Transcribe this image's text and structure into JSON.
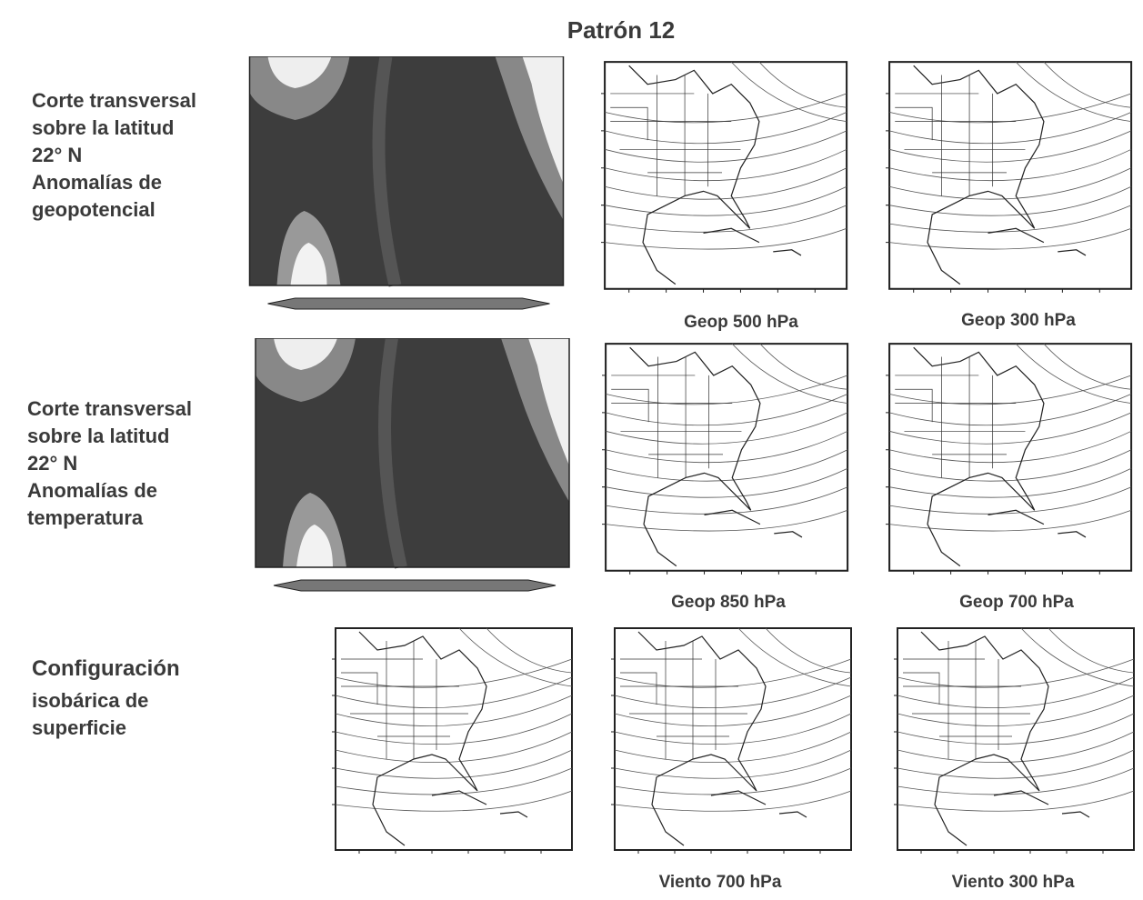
{
  "title": "Patrón 12",
  "rows": [
    {
      "label": [
        "Corte transversal",
        "sobre la latitud",
        "22° N",
        "Anomalías de",
        "geopotencial"
      ]
    },
    {
      "label": [
        "Corte transversal",
        "sobre la latitud",
        "22° N",
        "Anomalías de",
        "temperatura"
      ]
    },
    {
      "label": [
        "Configuración",
        "isobárica de",
        "superficie"
      ]
    }
  ],
  "captions": [
    "Geop 500 hPa",
    "Geop 300 hPa",
    "Geop 850 hPa",
    "Geop 700 hPa",
    "Viento 700 hPa",
    "Viento 300 hPa"
  ]
}
